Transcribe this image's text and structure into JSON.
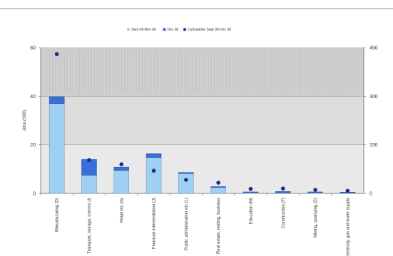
{
  "chart_data": {
    "type": "bar",
    "stacked": true,
    "categories": [
      "Manufacturing (D)",
      "Transport, storage, comms (I)",
      "Retail etc (G)",
      "Financial intermediation (J)",
      "Public administration etc (L)",
      "Real estate, renting, business",
      "Education (M)",
      "Construction (F)",
      "Mining, quarrying (C)",
      "Electricity, gas and water supply"
    ],
    "series": [
      {
        "name": "Sept 06-Nov 06",
        "type": "bar",
        "axis": "left",
        "color": "#9fd0f2",
        "values": [
          37,
          7.5,
          9.5,
          14.8,
          8.2,
          2.5,
          0.4,
          0.3,
          0.4,
          0.3
        ]
      },
      {
        "name": "Dec 06",
        "type": "bar",
        "axis": "left",
        "color": "#3a6fd8",
        "values": [
          2.8,
          6.5,
          1.3,
          1.6,
          0.4,
          0.3,
          0.2,
          0.5,
          0.2,
          0.2
        ]
      },
      {
        "name": "Cumulative Sept 06-Dec 06",
        "type": "scatter",
        "axis": "right",
        "color": "#1b2a8c",
        "values": [
          430,
          103,
          90,
          70,
          42,
          33,
          14,
          15,
          11,
          8
        ]
      }
    ],
    "legend": [
      "Sept 06-Nov 06",
      "Dec 06",
      "Cumulative Sept 06-Dec 06"
    ],
    "legend_position": "top",
    "ylabel": "Jobs ('000)",
    "ylim": [
      0,
      60
    ],
    "yticks": [
      0,
      20,
      40,
      60
    ],
    "y2lim": [
      0,
      450
    ],
    "y2ticks": [
      0,
      150,
      300,
      450
    ],
    "grid": true
  }
}
